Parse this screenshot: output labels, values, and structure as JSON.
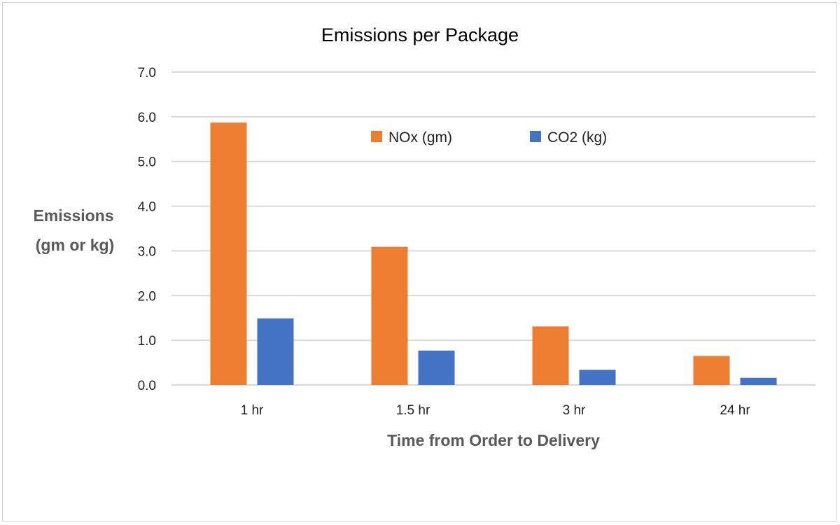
{
  "chart_data": {
    "type": "bar",
    "title": "Emissions per Package",
    "xlabel": "Time from Order to Delivery",
    "ylabel": [
      "Emissions",
      "(gm or kg)"
    ],
    "categories": [
      "1 hr",
      "1.5 hr",
      "3 hr",
      "24 hr"
    ],
    "series": [
      {
        "name": "NOx (gm)",
        "color": "#ED7D31",
        "values": [
          5.87,
          3.09,
          1.31,
          0.65
        ]
      },
      {
        "name": "CO2 (kg)",
        "color": "#4472C4",
        "values": [
          1.49,
          0.77,
          0.34,
          0.16
        ]
      }
    ],
    "ylim": [
      0,
      7
    ],
    "yticks": [
      "0.0",
      "1.0",
      "2.0",
      "3.0",
      "4.0",
      "5.0",
      "6.0",
      "7.0"
    ],
    "grid": true,
    "legend": "top-center"
  }
}
